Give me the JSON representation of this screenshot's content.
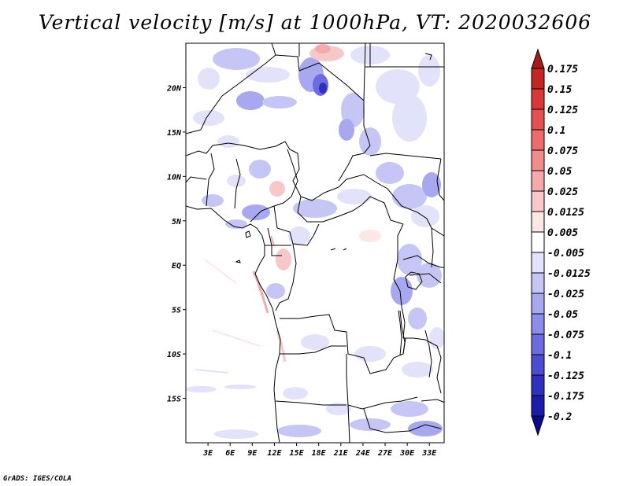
{
  "title": "Vertical velocity [m/s] at 1000hPa, VT: 2020032606",
  "credit": "GrADS: IGES/COLA",
  "map": {
    "lon_range": [
      0,
      35
    ],
    "lat_range": [
      -20,
      25
    ],
    "lon_ticks": [
      "3E",
      "6E",
      "9E",
      "12E",
      "15E",
      "18E",
      "21E",
      "24E",
      "27E",
      "30E",
      "33E"
    ],
    "lat_ticks": [
      "20N",
      "15N",
      "10N",
      "5N",
      "EQ",
      "5S",
      "10S",
      "15S"
    ]
  },
  "colorbar": {
    "labels": [
      "0.175",
      "0.15",
      "0.125",
      "0.1",
      "0.075",
      "0.05",
      "0.025",
      "0.0125",
      "0.005",
      "-0.005",
      "-0.0125",
      "-0.025",
      "-0.05",
      "-0.075",
      "-0.1",
      "-0.125",
      "-0.175",
      "-0.2"
    ],
    "colors": [
      "#a81a1a",
      "#c42626",
      "#d83838",
      "#e45050",
      "#ec6c6c",
      "#f08c8c",
      "#f4aaaa",
      "#f8c8c8",
      "#fce6e6",
      "#ffffff",
      "#e2e2fa",
      "#c6c6f6",
      "#a8a8f0",
      "#8c8cea",
      "#6c6ce0",
      "#4c4cd2",
      "#3030c0",
      "#1c1ca8",
      "#0a0a8c"
    ]
  }
}
